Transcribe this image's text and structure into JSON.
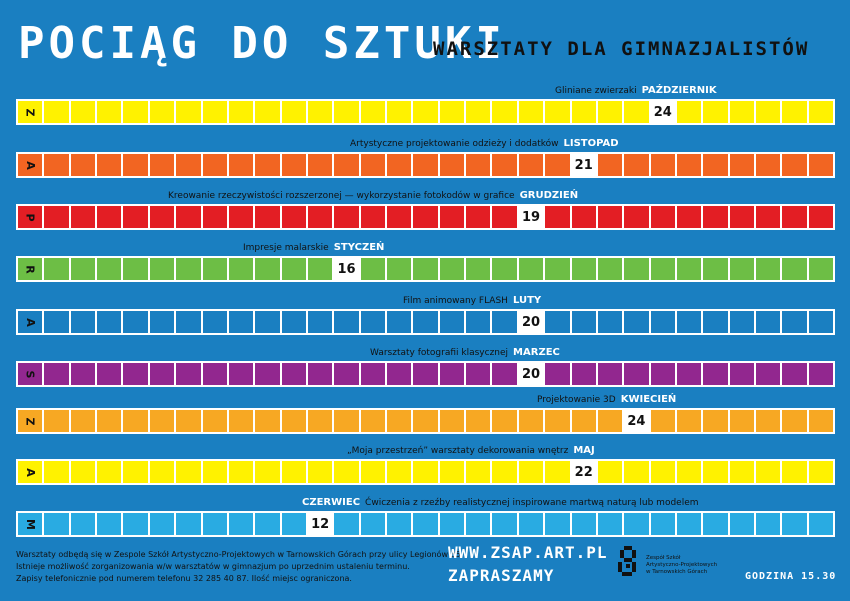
{
  "header": {
    "title": "POCIĄG DO SZTUKI",
    "subtitle": "WARSZTATY DLA GIMNAZJALISTÓW"
  },
  "rows": [
    {
      "letter": "Z",
      "color": "#fff200",
      "title": "Gliniane zwierzaki",
      "month": "PAŹDZIERNIK",
      "day": "24"
    },
    {
      "letter": "A",
      "color": "#f26522",
      "title": "Artystyczne projektowanie odzieży i dodatków",
      "month": "LISTOPAD",
      "day": "21"
    },
    {
      "letter": "P",
      "color": "#e31e24",
      "title": "Kreowanie rzeczywistości rozszerzonej — wykorzystanie fotokodów w grafice",
      "month": "GRUDZIEŃ",
      "day": "19"
    },
    {
      "letter": "R",
      "color": "#6dbe45",
      "title": "Impresje malarskie",
      "month": "STYCZEŃ",
      "day": "16"
    },
    {
      "letter": "A",
      "color": "#1a7fc1",
      "title": "Film animowany FLASH",
      "month": "LUTY",
      "day": "20"
    },
    {
      "letter": "S",
      "color": "#92278f",
      "title": "Warsztaty fotografii klasycznej",
      "month": "MARZEC",
      "day": "20"
    },
    {
      "letter": "Z",
      "color": "#f7a823",
      "title": "Projektowanie 3D",
      "month": "KWIECIEŃ",
      "day": "24"
    },
    {
      "letter": "A",
      "color": "#fff200",
      "title": "„Moja przestrzeń” warsztaty dekorowania wnętrz",
      "month": "MAJ",
      "day": "22"
    },
    {
      "letter": "M",
      "color": "#29abe2",
      "title": "Ćwiczenia z rzeźby realistycznej inspirowane martwą naturą lub modelem",
      "month": "CZERWIEC",
      "day": "12"
    }
  ],
  "footer": {
    "info": [
      "Warsztaty odbędą się w Zespole Szkół Artystyczno-Projektowych w Tarnowskich Górach przy ulicy Legionów 35.",
      "Istnieje możliwość zorganizowania w/w warsztatów w gimnazjum po uprzednim ustaleniu terminu.",
      "Zapisy telefonicznie pod numerem telefonu 32 285 40 87. Ilość miejsc ograniczona."
    ],
    "url": "WWW.ZSAP.ART.PL",
    "invite": "ZAPRASZAMY",
    "school": [
      "Zespół Szkół",
      "Artystyczno-Projektowych",
      "w Tarnowskich Górach"
    ],
    "hour": "GODZINA 15.30"
  }
}
